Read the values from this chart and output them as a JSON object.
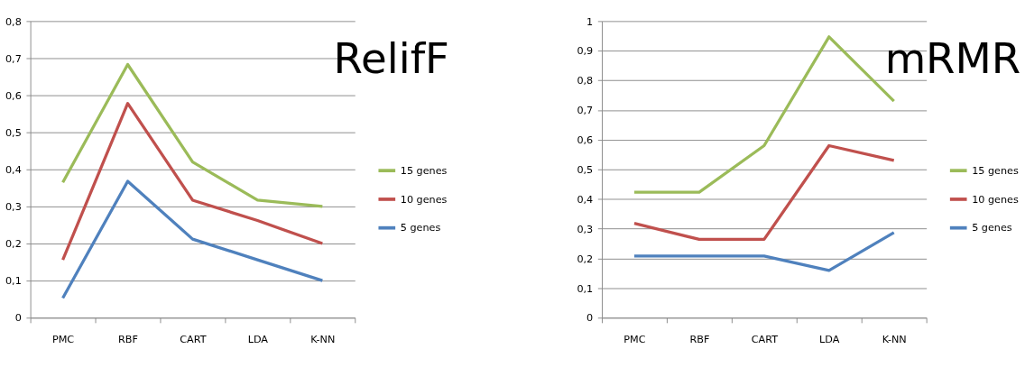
{
  "chart_data": [
    {
      "type": "line",
      "title": "RelifF",
      "categories": [
        "PMC",
        "RBF",
        "CART",
        "LDA",
        "K-NN"
      ],
      "ylim": [
        0,
        0.8
      ],
      "yticks": [
        {
          "value": 0,
          "label": "0"
        },
        {
          "value": 0.1,
          "label": "0,1"
        },
        {
          "value": 0.2,
          "label": "0,2"
        },
        {
          "value": 0.3,
          "label": "0,3"
        },
        {
          "value": 0.4,
          "label": "0,4"
        },
        {
          "value": 0.5,
          "label": "0,5"
        },
        {
          "value": 0.6,
          "label": "0,6"
        },
        {
          "value": 0.7,
          "label": "0,7"
        },
        {
          "value": 0.8,
          "label": "0,8"
        }
      ],
      "grid": "y",
      "legend": "right",
      "line_style": "solid",
      "series": [
        {
          "name": "15 genes",
          "color": "#9bbb59",
          "values": [
            0.365,
            0.683,
            0.42,
            0.317,
            0.3
          ]
        },
        {
          "name": "10 genes",
          "color": "#c0504d",
          "values": [
            0.156,
            0.578,
            0.317,
            0.262,
            0.2
          ]
        },
        {
          "name": "5 genes",
          "color": "#4f81bd",
          "values": [
            0.053,
            0.368,
            0.212,
            0.156,
            0.1
          ]
        }
      ]
    },
    {
      "type": "line",
      "title": "mRMR",
      "categories": [
        "PMC",
        "RBF",
        "CART",
        "LDA",
        "K-NN"
      ],
      "ylim": [
        0,
        1
      ],
      "yticks": [
        {
          "value": 0,
          "label": "0"
        },
        {
          "value": 0.1,
          "label": "0,1"
        },
        {
          "value": 0.2,
          "label": "0,2"
        },
        {
          "value": 0.3,
          "label": "0,3"
        },
        {
          "value": 0.4,
          "label": "0,4"
        },
        {
          "value": 0.5,
          "label": "0,5"
        },
        {
          "value": 0.6,
          "label": "0,6"
        },
        {
          "value": 0.7,
          "label": "0,7"
        },
        {
          "value": 0.8,
          "label": "0,8"
        },
        {
          "value": 0.9,
          "label": "0,9"
        },
        {
          "value": 1,
          "label": "1"
        }
      ],
      "grid": "y",
      "legend": "right",
      "line_style": "solid",
      "series": [
        {
          "name": "15 genes",
          "color": "#9bbb59",
          "values": [
            0.423,
            0.423,
            0.58,
            0.947,
            0.73
          ]
        },
        {
          "name": "10 genes",
          "color": "#c0504d",
          "values": [
            0.318,
            0.264,
            0.264,
            0.58,
            0.53
          ]
        },
        {
          "name": "5 genes",
          "color": "#4f81bd",
          "values": [
            0.208,
            0.208,
            0.208,
            0.159,
            0.287
          ]
        }
      ]
    }
  ]
}
